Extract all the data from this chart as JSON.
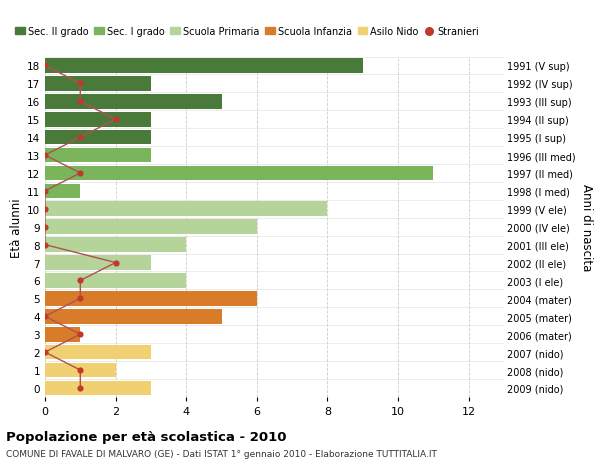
{
  "ages": [
    18,
    17,
    16,
    15,
    14,
    13,
    12,
    11,
    10,
    9,
    8,
    7,
    6,
    5,
    4,
    3,
    2,
    1,
    0
  ],
  "right_labels": [
    "1991 (V sup)",
    "1992 (IV sup)",
    "1993 (III sup)",
    "1994 (II sup)",
    "1995 (I sup)",
    "1996 (III med)",
    "1997 (II med)",
    "1998 (I med)",
    "1999 (V ele)",
    "2000 (IV ele)",
    "2001 (III ele)",
    "2002 (II ele)",
    "2003 (I ele)",
    "2004 (mater)",
    "2005 (mater)",
    "2006 (mater)",
    "2007 (nido)",
    "2008 (nido)",
    "2009 (nido)"
  ],
  "bar_values": [
    9,
    3,
    5,
    3,
    3,
    3,
    11,
    1,
    8,
    6,
    4,
    3,
    4,
    6,
    5,
    1,
    3,
    2,
    3
  ],
  "bar_colors": [
    "#4a7a3a",
    "#4a7a3a",
    "#4a7a3a",
    "#4a7a3a",
    "#4a7a3a",
    "#7ab55c",
    "#7ab55c",
    "#7ab55c",
    "#b5d49a",
    "#b5d49a",
    "#b5d49a",
    "#b5d49a",
    "#b5d49a",
    "#d97c2a",
    "#d97c2a",
    "#d97c2a",
    "#f0d070",
    "#f0d070",
    "#f0d070"
  ],
  "stranieri_values": [
    0,
    1,
    1,
    2,
    1,
    0,
    1,
    0,
    0,
    0,
    0,
    2,
    1,
    1,
    0,
    1,
    0,
    1,
    1
  ],
  "legend_labels": [
    "Sec. II grado",
    "Sec. I grado",
    "Scuola Primaria",
    "Scuola Infanzia",
    "Asilo Nido",
    "Stranieri"
  ],
  "legend_colors": [
    "#4a7a3a",
    "#7ab55c",
    "#b5d49a",
    "#d97c2a",
    "#f0d070",
    "#c0392b"
  ],
  "stranieri_color": "#c0392b",
  "stranieri_line_color": "#b05050",
  "ylabel": "Età alunni",
  "ylabel_right": "Anni di nascita",
  "title": "Popolazione per età scolastica - 2010",
  "subtitle": "COMUNE DI FAVALE DI MALVARO (GE) - Dati ISTAT 1° gennaio 2010 - Elaborazione TUTTITALIA.IT",
  "xlim": [
    0,
    13
  ],
  "xticks": [
    0,
    2,
    4,
    6,
    8,
    10,
    12
  ],
  "background_color": "#ffffff",
  "grid_color": "#cccccc",
  "bar_height": 0.82
}
